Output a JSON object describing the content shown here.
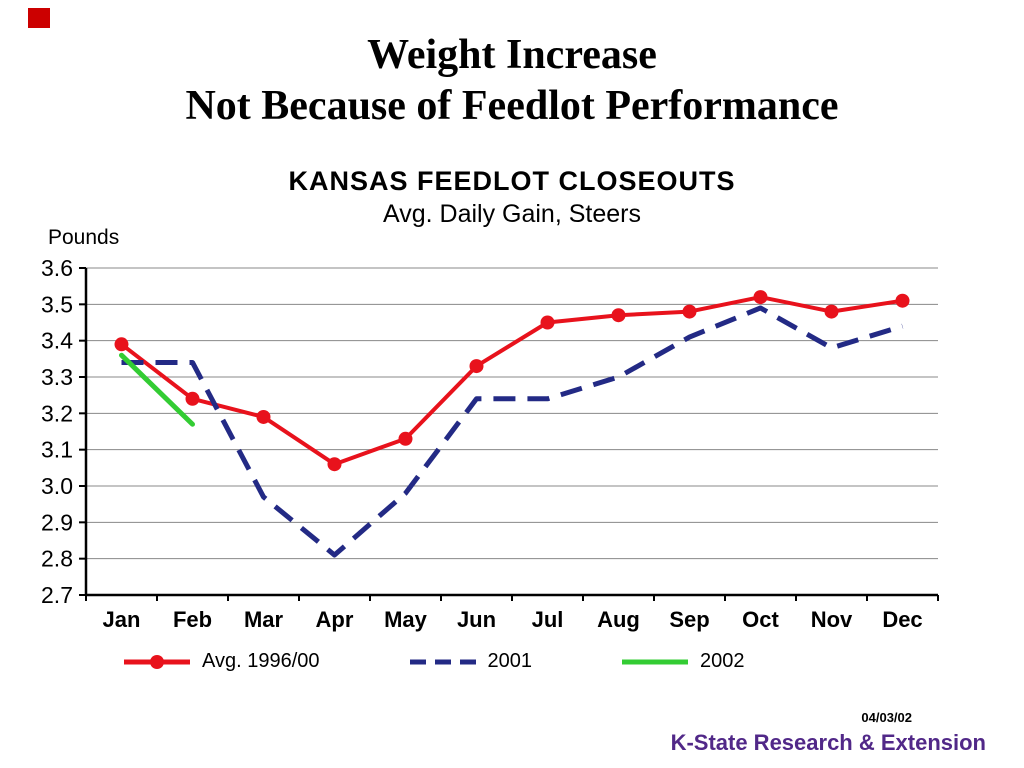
{
  "slide": {
    "title_line1": "Weight Increase",
    "title_line2": "Not Because of Feedlot Performance",
    "date_stamp": "04/03/02",
    "footer": "K-State Research & Extension",
    "footer_color": "#512888",
    "accent_color": "#cc0000"
  },
  "chart_data": {
    "type": "line",
    "title": "KANSAS  FEEDLOT  CLOSEOUTS",
    "subtitle": "Avg. Daily Gain, Steers",
    "ylabel": "Pounds",
    "categories": [
      "Jan",
      "Feb",
      "Mar",
      "Apr",
      "May",
      "Jun",
      "Jul",
      "Aug",
      "Sep",
      "Oct",
      "Nov",
      "Dec"
    ],
    "series": [
      {
        "name": "Avg. 1996/00",
        "color": "#e8121c",
        "style": "solid-markers",
        "values": [
          3.39,
          3.24,
          3.19,
          3.06,
          3.13,
          3.33,
          3.45,
          3.47,
          3.48,
          3.52,
          3.48,
          3.51
        ]
      },
      {
        "name": "2001",
        "color": "#232a85",
        "style": "dashed",
        "values": [
          3.34,
          3.34,
          2.97,
          2.81,
          2.98,
          3.24,
          3.24,
          3.3,
          3.41,
          3.49,
          3.38,
          3.44
        ]
      },
      {
        "name": "2002",
        "color": "#33cc33",
        "style": "solid",
        "values": [
          3.36,
          3.17,
          null,
          null,
          null,
          null,
          null,
          null,
          null,
          null,
          null,
          null
        ]
      }
    ],
    "ylim": [
      2.7,
      3.6
    ],
    "ytick_step": 0.1,
    "grid": true,
    "legend_position": "bottom"
  }
}
